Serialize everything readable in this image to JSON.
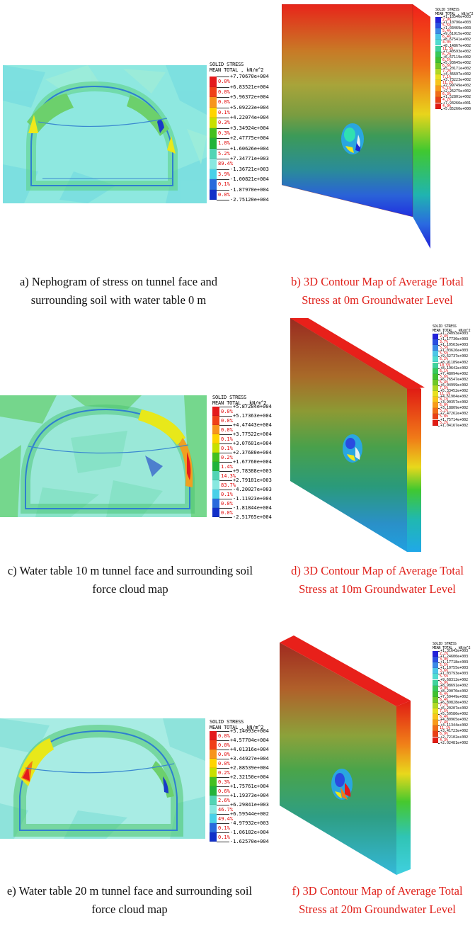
{
  "panels": [
    {
      "id": "a",
      "caption": [
        "a) Nephogram of stress on tunnel face and",
        "surrounding soil with water table 0 m"
      ],
      "legend": {
        "title1": "SOLID STRESS",
        "title2": "MEAN TOTAL , kN/m^2",
        "values": [
          "+7.70670e+004",
          "+6.83521e+004",
          "+5.96372e+004",
          "+5.09223e+004",
          "+4.22074e+004",
          "+3.34924e+004",
          "+2.47775e+004",
          "+1.60626e+004",
          "+7.34771e+003",
          "-1.36721e+003",
          "-1.00821e+004",
          "-1.87970e+004",
          "-2.75120e+004"
        ],
        "percents": [
          "0.0%",
          "0.0%",
          "0.0%",
          "0.1%",
          "0.3%",
          "0.3%",
          "1.0%",
          "5.2%",
          "89.4%",
          "3.9%",
          "0.1%",
          "0.0%"
        ]
      }
    },
    {
      "id": "b",
      "caption": [
        "b) 3D Contour Map of Average Total",
        "Stress at 0m Groundwater Level"
      ],
      "legend": {
        "title1": "SOLID STRESS",
        "title2": "MEAN TOTAL , kN/m^2",
        "values": [
          "+1.18546e+003",
          "+1.10796e+003",
          "+1.03469e+003",
          "+9.61915e+002",
          "+8.67541e+002",
          "+8.14867e+002",
          "+7.40593e+002",
          "+6.67119e+002",
          "+5.93645e+002",
          "+5.20171e+002",
          "+4.46697e+002",
          "+3.73223e+002",
          "+2.99749e+002",
          "+2.26275e+002",
          "+1.52801e+002",
          "+7.93266e+001",
          "+5.85260e+000"
        ],
        "percents": [
          "2.9%",
          "5.5%",
          "5.4%",
          "6.4%",
          "4.0%",
          "11.5%",
          "6.2%",
          "6.5%",
          "6.6%",
          "7.2%",
          "7.1%",
          "11.2%",
          "5.1%",
          "6.3%",
          "4.2%",
          "4.9%"
        ]
      }
    },
    {
      "id": "c",
      "caption": [
        "c) Water table 10 m tunnel face and surrounding soil",
        "force cloud map"
      ],
      "legend": {
        "title1": "SOLID STRESS",
        "title2": "MEAN TOTAL , kN/m^2",
        "values": [
          "+5.87284e+004",
          "+5.17363e+004",
          "+4.47443e+004",
          "+3.77522e+004",
          "+3.07601e+004",
          "+2.37680e+004",
          "+1.67760e+004",
          "+9.78388e+003",
          "+2.79181e+003",
          "-4.20027e+003",
          "-1.11923e+004",
          "-1.81844e+004",
          "-2.51765e+004"
        ],
        "percents": [
          "0.0%",
          "0.0%",
          "0.0%",
          "0.1%",
          "0.1%",
          "0.2%",
          "1.4%",
          "14.3%",
          "83.7%",
          "0.1%",
          "0.0%",
          "0.0%"
        ]
      }
    },
    {
      "id": "d",
      "caption": [
        "d) 3D Contour Map of Average Total",
        "Stress at 10m Groundwater Level"
      ],
      "legend": {
        "title1": "SOLID STRESS",
        "title2": "MEAN TOTAL , kN/m^2",
        "values": [
          "+1.24093e+003",
          "+1.17730e+003",
          "+1.10563e+003",
          "+1.03626e+003",
          "+9.62737e+002",
          "+8.91189e+002",
          "+8.19642e+002",
          "+7.48094e+002",
          "+6.76547e+002",
          "+6.04999e+002",
          "+5.33452e+002",
          "+4.61904e+002",
          "+3.90357e+002",
          "+3.18809e+002",
          "+2.47262e+002",
          "+1.75714e+002",
          "+1.04167e+002"
        ],
        "percents": [
          "2.4%",
          "3.7%",
          "5.5%",
          "5.5%",
          "6.2%",
          "10.5%",
          "6.1%",
          "5.6%",
          "6.4%",
          "7.5%",
          "11.1%",
          "8.1%",
          "6.0%",
          "5.2%",
          "5.8%",
          "5.2%"
        ]
      }
    },
    {
      "id": "e",
      "caption": [
        "e) Water table 20 m tunnel face and surrounding soil",
        "force cloud map"
      ],
      "legend": {
        "title1": "SOLID STRESS",
        "title2": "MEAN TOTAL , kN/m^2",
        "values": [
          "+5.14093e+004",
          "+4.57704e+004",
          "+4.01316e+004",
          "+3.44927e+004",
          "+2.88539e+004",
          "+2.32150e+004",
          "+1.75761e+004",
          "+1.19373e+004",
          "+6.29841e+003",
          "+6.59544e+002",
          "-4.97932e+003",
          "-1.06182e+004",
          "-1.62570e+004"
        ],
        "percents": [
          "0.0%",
          "0.0%",
          "0.0%",
          "0.0%",
          "0.2%",
          "0.3%",
          "0.6%",
          "2.6%",
          "46.7%",
          "49.4%",
          "0.1%",
          "0.1%"
        ]
      }
    },
    {
      "id": "f",
      "caption": [
        "f) 3D Contour Map of Average Total",
        "Stress at 20m Groundwater Level"
      ],
      "legend": {
        "title1": "SOLID STRESS",
        "title2": "MEAN TOTAL , kN/m^2",
        "values": [
          "+1.31642e+003",
          "+1.24600e+003",
          "+1.17718e+003",
          "+1.10755e+003",
          "+1.03793e+003",
          "+9.68312e+002",
          "+8.98691e+002",
          "+8.29070e+002",
          "+7.59449e+002",
          "+6.89828e+002",
          "+6.20207e+002",
          "+5.50586e+002",
          "+4.80965e+002",
          "+4.11344e+002",
          "+3.41723e+002",
          "+2.72102e+002",
          "+2.02481e+002"
        ],
        "percents": [
          "2.2%",
          "3.9%",
          "5.5%",
          "3.6%",
          "5.5%",
          "5.9%",
          "9.9%",
          "6.4%",
          "6.4%",
          "7.7%",
          "7.5%",
          "6.4%",
          "7.4%",
          "11.1%",
          "6.9%",
          "4.3%"
        ]
      }
    }
  ],
  "colors": {
    "scale13": [
      "#e41a1c",
      "#f04018",
      "#f7941d",
      "#ffd400",
      "#c8e000",
      "#44c020",
      "#22b33a",
      "#52d4b4",
      "#88e8e0",
      "#4ad0e8",
      "#2a6adc",
      "#1230c8"
    ],
    "scale17": [
      "#2222d8",
      "#2a4fe0",
      "#3c8ae6",
      "#4cc6e6",
      "#50dcd0",
      "#40d29c",
      "#38c85a",
      "#40c030",
      "#70c826",
      "#b0d824",
      "#e8e020",
      "#f8c41c",
      "#f89a1a",
      "#f06c18",
      "#e84016",
      "#e01c14"
    ],
    "caption_red": "#e0201a"
  }
}
